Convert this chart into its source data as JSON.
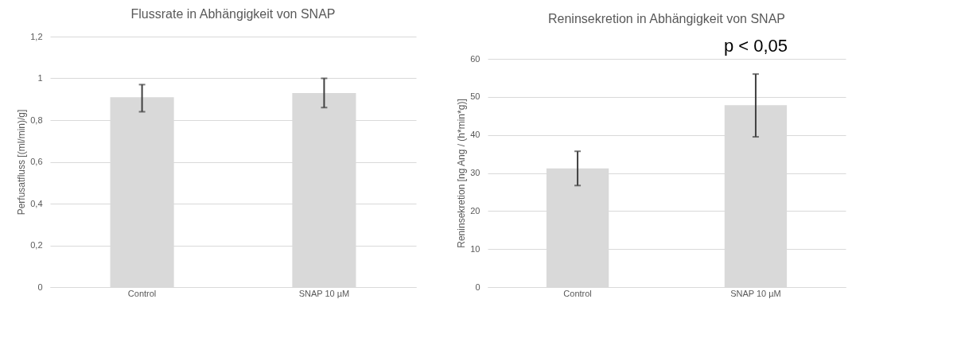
{
  "chart_data": [
    {
      "type": "bar",
      "title": "Flussrate in Abhängigkeit von SNAP",
      "ylabel": "Perfusatfluss [(ml/min)/g]",
      "categories": [
        "Control",
        "SNAP 10 µM"
      ],
      "values": [
        0.91,
        0.93
      ],
      "color": "#d9d9d9",
      "errors": [
        [
          0.84,
          0.97
        ],
        [
          0.86,
          1.0
        ]
      ],
      "ylim": [
        0,
        1.2
      ],
      "yticks": [
        0,
        {
          "value": 0.2,
          "label": "0,2"
        },
        {
          "value": 0.4,
          "label": "0,4"
        },
        {
          "value": 0.6,
          "label": "0,6"
        },
        {
          "value": 0.8,
          "label": "0,8"
        },
        1,
        {
          "value": 1.2,
          "label": "1,2"
        }
      ],
      "grid": "y"
    },
    {
      "type": "bar",
      "title": "Reninsekretion in Abhängigkeit von SNAP",
      "ylabel": "Reninsekretion [ng Ang / (h*min*g)]",
      "categories": [
        "Control",
        "SNAP 10 µM"
      ],
      "values": [
        31.2,
        47.8
      ],
      "color": "#d9d9d9",
      "errors": [
        [
          26.7,
          35.7
        ],
        [
          39.5,
          56.0
        ]
      ],
      "ylim": [
        0,
        60
      ],
      "yticks": [
        0,
        10,
        20,
        30,
        40,
        50,
        60
      ],
      "grid": "y",
      "annotations": [
        "p < 0,05"
      ]
    }
  ]
}
